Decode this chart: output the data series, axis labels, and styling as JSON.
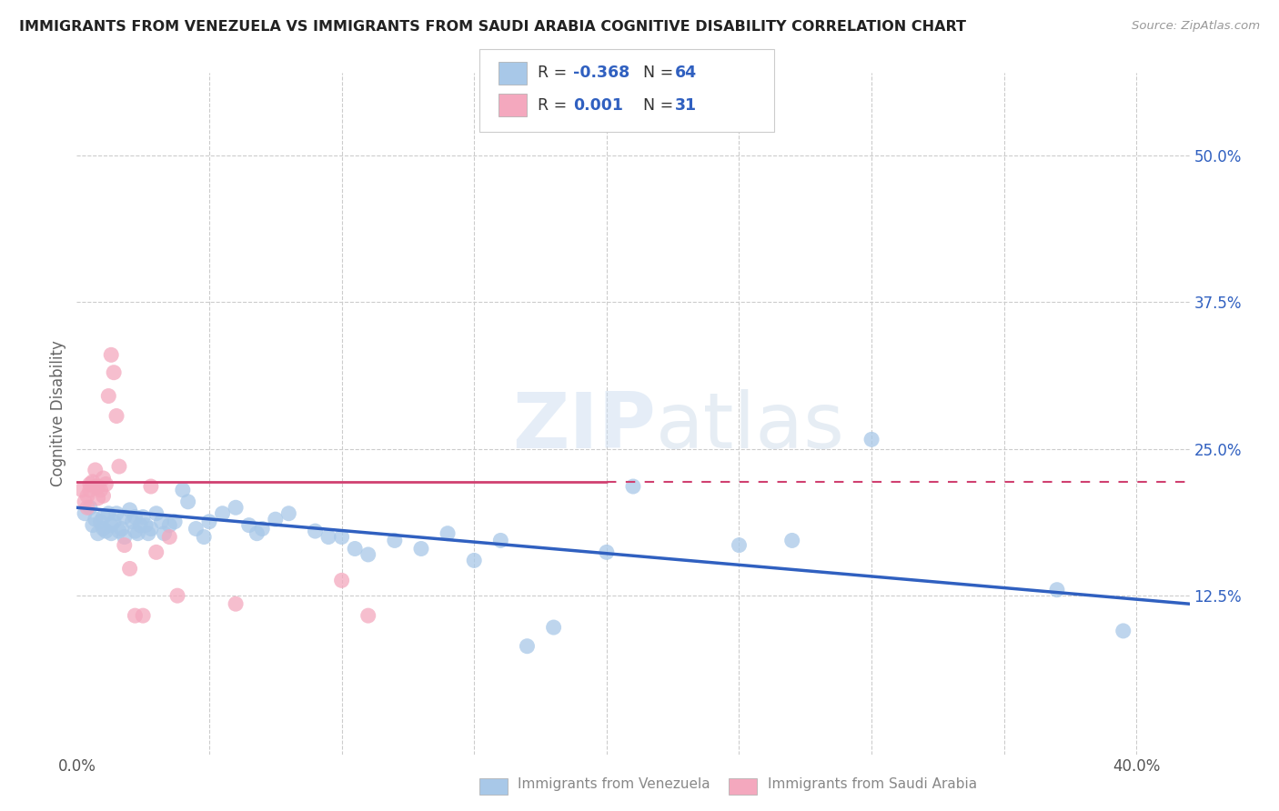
{
  "title": "IMMIGRANTS FROM VENEZUELA VS IMMIGRANTS FROM SAUDI ARABIA COGNITIVE DISABILITY CORRELATION CHART",
  "source": "Source: ZipAtlas.com",
  "xlabel_blue": "Immigrants from Venezuela",
  "xlabel_pink": "Immigrants from Saudi Arabia",
  "ylabel": "Cognitive Disability",
  "xlim": [
    0.0,
    0.42
  ],
  "ylim": [
    -0.01,
    0.57
  ],
  "yticks_right": [
    0.125,
    0.25,
    0.375,
    0.5
  ],
  "ytick_labels_right": [
    "12.5%",
    "25.0%",
    "37.5%",
    "50.0%"
  ],
  "legend_R_blue": "-0.368",
  "legend_N_blue": "64",
  "legend_R_pink": "0.001",
  "legend_N_pink": "31",
  "blue_color": "#a8c8e8",
  "pink_color": "#f4a8be",
  "trendline_blue": "#3060c0",
  "trendline_pink": "#d04070",
  "watermark": "ZIPatlas",
  "blue_x": [
    0.003,
    0.005,
    0.006,
    0.007,
    0.008,
    0.009,
    0.01,
    0.01,
    0.011,
    0.012,
    0.013,
    0.013,
    0.014,
    0.015,
    0.016,
    0.017,
    0.018,
    0.018,
    0.02,
    0.021,
    0.022,
    0.022,
    0.023,
    0.024,
    0.025,
    0.026,
    0.027,
    0.028,
    0.03,
    0.032,
    0.033,
    0.035,
    0.037,
    0.04,
    0.042,
    0.045,
    0.048,
    0.05,
    0.055,
    0.06,
    0.065,
    0.068,
    0.07,
    0.075,
    0.08,
    0.09,
    0.095,
    0.1,
    0.105,
    0.11,
    0.12,
    0.13,
    0.14,
    0.15,
    0.16,
    0.17,
    0.18,
    0.2,
    0.21,
    0.25,
    0.27,
    0.3,
    0.37,
    0.395
  ],
  "blue_y": [
    0.195,
    0.2,
    0.185,
    0.19,
    0.178,
    0.188,
    0.192,
    0.182,
    0.18,
    0.195,
    0.185,
    0.178,
    0.188,
    0.195,
    0.18,
    0.182,
    0.192,
    0.175,
    0.198,
    0.188,
    0.18,
    0.192,
    0.178,
    0.185,
    0.192,
    0.185,
    0.178,
    0.182,
    0.195,
    0.188,
    0.178,
    0.185,
    0.188,
    0.215,
    0.205,
    0.182,
    0.175,
    0.188,
    0.195,
    0.2,
    0.185,
    0.178,
    0.182,
    0.19,
    0.195,
    0.18,
    0.175,
    0.175,
    0.165,
    0.16,
    0.172,
    0.165,
    0.178,
    0.155,
    0.172,
    0.082,
    0.098,
    0.162,
    0.218,
    0.168,
    0.172,
    0.258,
    0.13,
    0.095
  ],
  "pink_x": [
    0.002,
    0.003,
    0.004,
    0.004,
    0.005,
    0.005,
    0.006,
    0.007,
    0.007,
    0.008,
    0.008,
    0.009,
    0.01,
    0.01,
    0.011,
    0.012,
    0.013,
    0.014,
    0.015,
    0.016,
    0.018,
    0.02,
    0.022,
    0.025,
    0.028,
    0.03,
    0.035,
    0.038,
    0.06,
    0.1,
    0.11
  ],
  "pink_y": [
    0.215,
    0.205,
    0.21,
    0.2,
    0.22,
    0.215,
    0.222,
    0.218,
    0.232,
    0.218,
    0.208,
    0.215,
    0.225,
    0.21,
    0.22,
    0.295,
    0.33,
    0.315,
    0.278,
    0.235,
    0.168,
    0.148,
    0.108,
    0.108,
    0.218,
    0.162,
    0.175,
    0.125,
    0.118,
    0.138,
    0.108
  ],
  "pink_trendline_y0": 0.222,
  "pink_trendline_y1": 0.222,
  "blue_trendline_y0": 0.2,
  "blue_trendline_y1": 0.118
}
